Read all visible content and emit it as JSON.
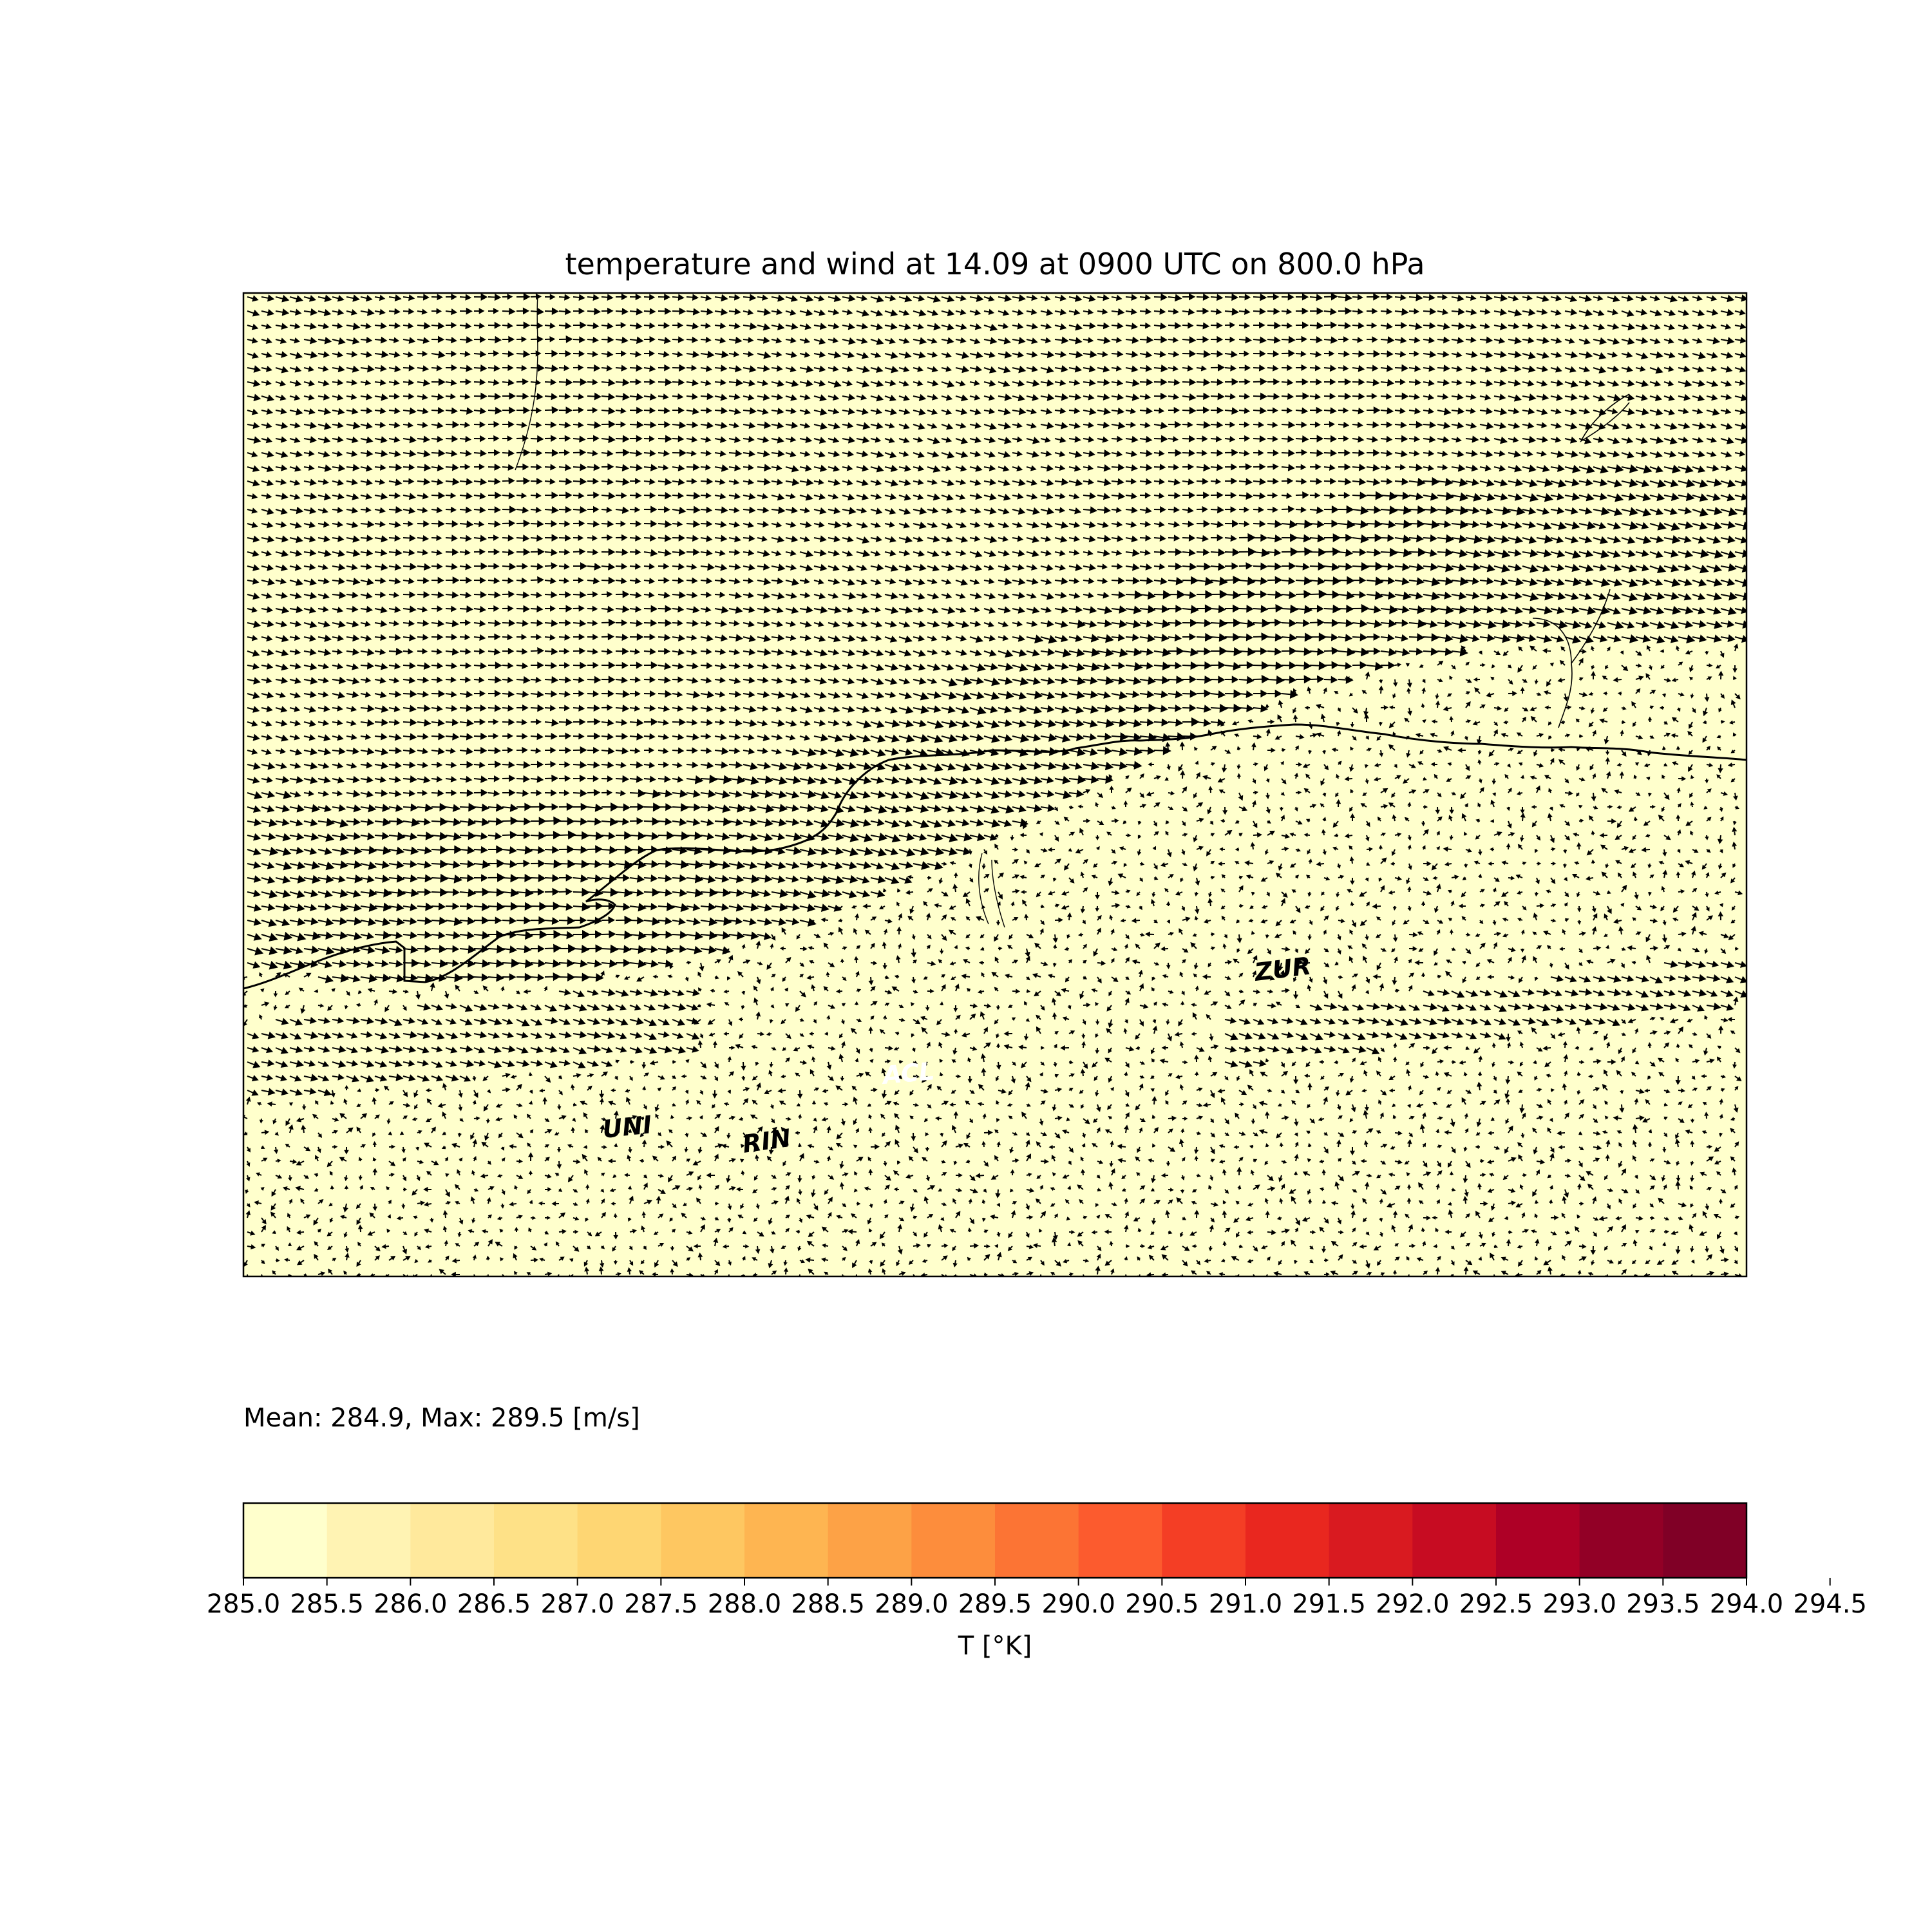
{
  "title": "temperature and wind at 14.09 at 0900 UTC on 800.0 hPa",
  "stats_text": "Mean: 284.9, Max: 289.5 [m/s]",
  "map": {
    "fill_color": "#ffffcc",
    "arrow_color": "#000000",
    "coast_color": "#000000",
    "station_labels": [
      {
        "name": "UNI",
        "color": "#000000"
      },
      {
        "name": "RIN",
        "color": "#000000"
      },
      {
        "name": "ACL",
        "color": "#ffffff"
      },
      {
        "name": "ZUR",
        "color": "#000000"
      }
    ]
  },
  "colorbar": {
    "label": "T [°K]",
    "levels": [
      "285.0",
      "285.5",
      "286.0",
      "286.5",
      "287.0",
      "287.5",
      "288.0",
      "288.5",
      "289.0",
      "289.5",
      "290.0",
      "290.5",
      "291.0",
      "291.5",
      "292.0",
      "292.5",
      "293.0",
      "293.5",
      "294.0",
      "294.5"
    ],
    "colors": [
      "#ffffcc",
      "#fff3b3",
      "#ffe99c",
      "#fee187",
      "#fed673",
      "#fec761",
      "#feb551",
      "#fda246",
      "#fd8d3c",
      "#fc7434",
      "#fc5b2e",
      "#f43e25",
      "#e9271f",
      "#d91a20",
      "#c70c22",
      "#ae0026",
      "#920026",
      "#800026"
    ]
  }
}
